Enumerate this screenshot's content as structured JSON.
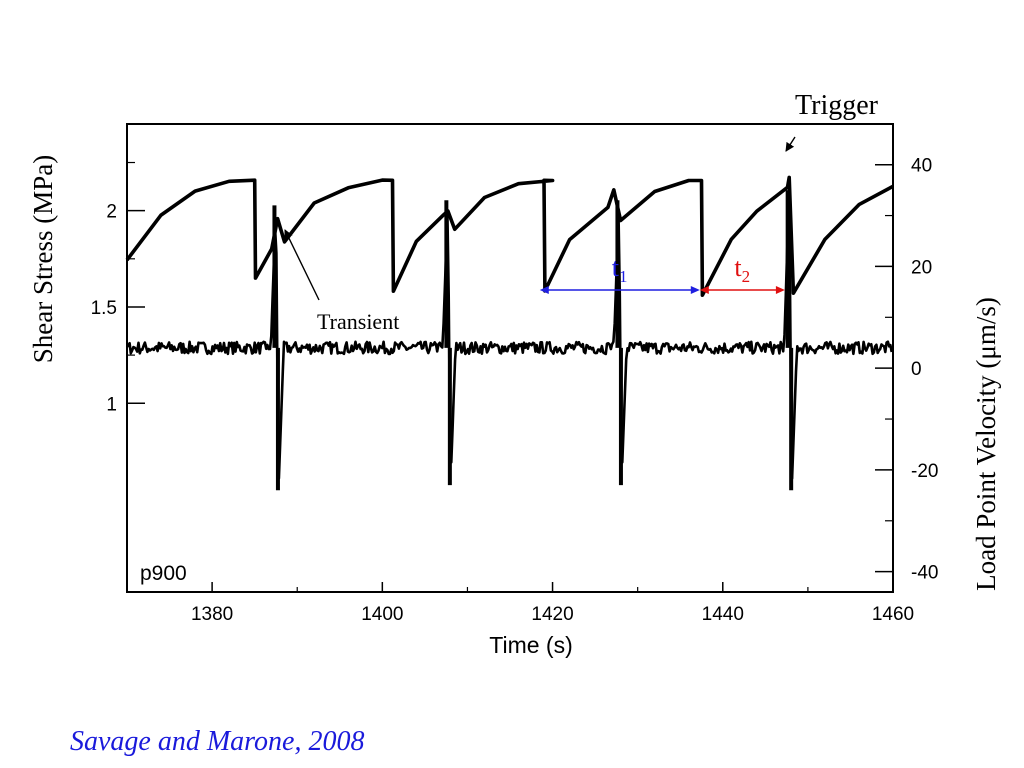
{
  "chart_data": {
    "type": "line",
    "panel_label": "p900",
    "x_axis": {
      "label": "Time (s)",
      "range": [
        1370,
        1460
      ],
      "ticks": [
        1380,
        1400,
        1420,
        1440,
        1460
      ],
      "tick_labels": [
        "1380",
        "1400",
        "1420",
        "1440",
        "1460"
      ]
    },
    "y_axis_left": {
      "label": "Shear Stress (MPa)",
      "range": [
        0.02,
        2.45
      ],
      "ticks": [
        1,
        1.5,
        2
      ],
      "tick_labels": [
        "1",
        "1.5",
        "2"
      ]
    },
    "y_axis_right": {
      "label": "Load Point Velocity (μm/s)",
      "range": [
        -44,
        48
      ],
      "ticks": [
        -40,
        -20,
        0,
        20,
        40
      ],
      "tick_labels": [
        "-40",
        "-20",
        "0",
        "20",
        "40"
      ]
    },
    "series": [
      {
        "axis": "left",
        "x": [
          1370,
          1374,
          1378,
          1382,
          1385,
          1385.1,
          1387,
          1387.7,
          1388.5,
          1392,
          1396,
          1400,
          1401.2,
          1401.3,
          1404,
          1407.2,
          1407.7,
          1408.5,
          1412,
          1416,
          1420,
          1419.0,
          1419.1,
          1422,
          1426.5,
          1427.2,
          1428,
          1432,
          1436,
          1437.5,
          1437.6,
          1441,
          1444,
          1447.6,
          1447.8,
          1448.3,
          1452,
          1456,
          1460
        ],
        "y": [
          1.74,
          1.98,
          2.1,
          2.15,
          2.16,
          1.65,
          1.8,
          1.96,
          1.84,
          2.04,
          2.12,
          2.16,
          2.16,
          1.58,
          1.84,
          1.98,
          2.0,
          1.9,
          2.07,
          2.14,
          2.16,
          2.16,
          1.58,
          1.85,
          2.02,
          2.11,
          1.95,
          2.1,
          2.16,
          2.16,
          1.56,
          1.85,
          2.0,
          2.12,
          2.17,
          1.57,
          1.85,
          2.03,
          2.13
        ]
      },
      {
        "axis": "right",
        "baseline": 4,
        "spikes": [
          {
            "x": 1387.5,
            "max": 32,
            "min": -24
          },
          {
            "x": 1407.7,
            "max": 33,
            "min": -23
          },
          {
            "x": 1427.8,
            "max": 33,
            "min": -23
          },
          {
            "x": 1447.8,
            "max": 35,
            "min": -24
          }
        ]
      }
    ],
    "annotations": {
      "transient": "Transient",
      "trigger": "Trigger",
      "t1": {
        "base": "t",
        "sub": "1",
        "color": "#1f1fe0",
        "x_start": 1418.5,
        "x_end": 1437.3
      },
      "t2": {
        "base": "t",
        "sub": "2",
        "color": "#e01010",
        "x_start": 1437.3,
        "x_end": 1447.3
      }
    }
  },
  "citation": "Savage and Marone, 2008"
}
